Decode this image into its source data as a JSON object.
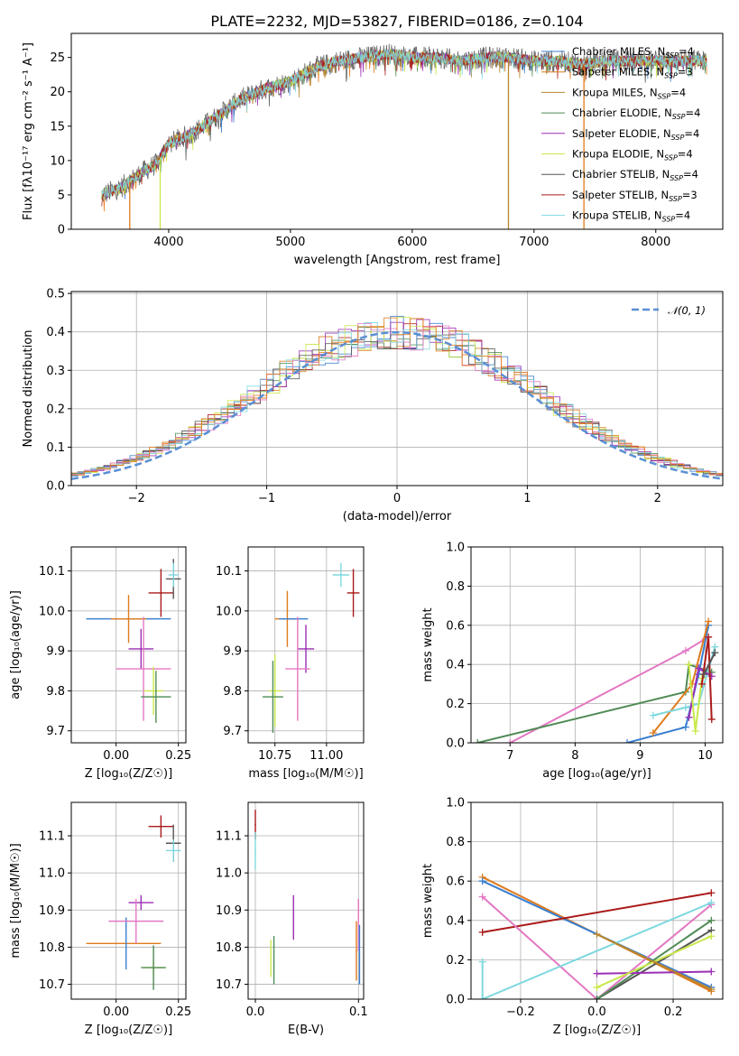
{
  "colors": [
    "#3a7fd0",
    "#e07b1d",
    "#b8862d",
    "#4f8b55",
    "#9b2fb5",
    "#c8e84a",
    "#555555",
    "#aa1a1a",
    "#7fd8df",
    "#e377c2"
  ],
  "chart_data": [
    {
      "id": "spectrum",
      "type": "line",
      "title": "PLATE=2232, MJD=53827, FIBERID=0186, z=0.104",
      "xlabel": "wavelength [Angstrom, rest frame]",
      "ylabel": "Flux [fλ10⁻¹⁷ erg cm⁻² s⁻¹ A⁻¹]",
      "xlim": [
        3200,
        8550
      ],
      "ylim": [
        0,
        28.5
      ],
      "xticks": [
        4000,
        5000,
        6000,
        7000,
        8000
      ],
      "yticks": [
        0,
        5,
        10,
        15,
        20,
        25
      ],
      "grid": false,
      "legend_position": "top-right",
      "continuum_x": [
        3450,
        3600,
        3800,
        3900,
        4000,
        4200,
        4400,
        4600,
        4800,
        5000,
        5200,
        5400,
        5600,
        5800,
        6000,
        6200,
        6400,
        6600,
        6800,
        7000,
        7200,
        7400,
        7600,
        7800,
        8000,
        8200,
        8400
      ],
      "continuum_y": [
        5,
        6,
        8.5,
        9.5,
        12.5,
        14,
        16.5,
        19,
        20.5,
        21.5,
        23.5,
        24.5,
        25,
        25.5,
        25,
        25,
        24.5,
        25,
        25,
        24.5,
        24.5,
        24,
        24.5,
        24.5,
        24.5,
        24.5,
        24.5
      ],
      "dips": [
        {
          "x": 3680,
          "series": 1
        },
        {
          "x": 3930,
          "series": 5
        },
        {
          "x": 6790,
          "series": 2
        },
        {
          "x": 7410,
          "series": 1
        }
      ],
      "legend": [
        {
          "label": "Chabrier MILES, N",
          "sub": "SSP",
          "suffix": "=4"
        },
        {
          "label": "Salpeter MILES, N",
          "sub": "SSP",
          "suffix": "=3"
        },
        {
          "label": "Kroupa MILES, N",
          "sub": "SSP",
          "suffix": "=4"
        },
        {
          "label": "Chabrier ELODIE, N",
          "sub": "SSP",
          "suffix": "=4"
        },
        {
          "label": "Salpeter ELODIE, N",
          "sub": "SSP",
          "suffix": "=4"
        },
        {
          "label": "Kroupa ELODIE, N",
          "sub": "SSP",
          "suffix": "=4"
        },
        {
          "label": "Chabrier STELIB, N",
          "sub": "SSP",
          "suffix": "=4"
        },
        {
          "label": "Salpeter STELIB, N",
          "sub": "SSP",
          "suffix": "=3"
        },
        {
          "label": "Kroupa STELIB, N",
          "sub": "SSP",
          "suffix": "=4"
        }
      ]
    },
    {
      "id": "residuals",
      "type": "histogram",
      "xlabel": "(data-model)/error",
      "ylabel": "Normed distribution",
      "xlim": [
        -2.5,
        2.5
      ],
      "ylim": [
        0,
        0.505
      ],
      "xticks": [
        -2,
        -1,
        0,
        1,
        2
      ],
      "yticks": [
        0.0,
        0.1,
        0.2,
        0.3,
        0.4,
        0.5
      ],
      "ytick_labels": [
        "0.0",
        "0.1",
        "0.2",
        "0.3",
        "0.4",
        "0.5"
      ],
      "xtick_labels": [
        "−2",
        "−1",
        "0",
        "1",
        "2"
      ],
      "grid": true,
      "bin_width": 0.1,
      "gaussian_label": "𝒩(0, 1)",
      "legend_position": "top-right"
    },
    {
      "id": "age-vs-Z",
      "type": "scatter",
      "xlabel": "Z [log₁₀(Z/Z☉)]",
      "ylabel": "age  [log₁₀(age/yr)]",
      "xlim": [
        -0.18,
        0.28
      ],
      "ylim": [
        9.67,
        10.16
      ],
      "xticks": [
        0.0,
        0.25
      ],
      "xtick_labels": [
        "0.00",
        "0.25"
      ],
      "yticks": [
        9.7,
        9.8,
        9.9,
        10.0,
        10.1
      ],
      "ytick_labels": [
        "9.7",
        "9.8",
        "9.9",
        "10.0",
        "10.1"
      ],
      "grid": true,
      "points": [
        {
          "x": 0.05,
          "y": 9.98,
          "dx": 0.17,
          "dy": 0.0,
          "c": 0
        },
        {
          "x": 0.05,
          "y": 9.98,
          "dx": 0.07,
          "dy": 0.06,
          "c": 1
        },
        {
          "x": 0.18,
          "y": 10.045,
          "dx": 0.05,
          "dy": 0.06,
          "c": 7
        },
        {
          "x": 0.23,
          "y": 10.08,
          "dx": 0.03,
          "dy": 0.05,
          "c": 6
        },
        {
          "x": 0.23,
          "y": 10.09,
          "dx": 0.02,
          "dy": 0.03,
          "c": 8
        },
        {
          "x": 0.1,
          "y": 9.905,
          "dx": 0.05,
          "dy": 0.05,
          "c": 4
        },
        {
          "x": 0.11,
          "y": 9.855,
          "dx": 0.11,
          "dy": 0.13,
          "c": 9
        },
        {
          "x": 0.15,
          "y": 9.8,
          "dx": 0.04,
          "dy": 0.06,
          "c": 5
        },
        {
          "x": 0.16,
          "y": 9.785,
          "dx": 0.06,
          "dy": 0.065,
          "c": 3
        }
      ]
    },
    {
      "id": "age-vs-mass",
      "type": "scatter",
      "xlabel": "mass [log₁₀(M/M☉)]",
      "ylabel": "",
      "xlim": [
        10.62,
        11.18
      ],
      "ylim": [
        9.67,
        10.16
      ],
      "xticks": [
        10.75,
        11.0
      ],
      "xtick_labels": [
        "10.75",
        "11.00"
      ],
      "yticks": [
        9.7,
        9.8,
        9.9,
        10.0,
        10.1
      ],
      "ytick_labels": [
        "9.7",
        "9.8",
        "9.9",
        "10.0",
        "10.1"
      ],
      "grid": true,
      "points": [
        {
          "x": 10.81,
          "y": 9.98,
          "dx": 0.06,
          "dy": 0.07,
          "c": 1
        },
        {
          "x": 10.84,
          "y": 9.98,
          "dx": 0.07,
          "dy": 0.0,
          "c": 0
        },
        {
          "x": 11.13,
          "y": 10.045,
          "dx": 0.03,
          "dy": 0.06,
          "c": 7
        },
        {
          "x": 11.07,
          "y": 10.09,
          "dx": 0.04,
          "dy": 0.03,
          "c": 8
        },
        {
          "x": 10.9,
          "y": 9.905,
          "dx": 0.04,
          "dy": 0.06,
          "c": 4
        },
        {
          "x": 10.86,
          "y": 9.855,
          "dx": 0.06,
          "dy": 0.13,
          "c": 9
        },
        {
          "x": 10.75,
          "y": 9.8,
          "dx": 0.03,
          "dy": 0.09,
          "c": 5
        },
        {
          "x": 10.74,
          "y": 9.785,
          "dx": 0.05,
          "dy": 0.09,
          "c": 3
        }
      ]
    },
    {
      "id": "weight-vs-age",
      "type": "line",
      "xlabel": "age  [log₁₀(age/yr)]",
      "ylabel": "mass weight",
      "xlim": [
        6.4,
        10.27
      ],
      "ylim": [
        0,
        1.0
      ],
      "xticks": [
        7,
        8,
        9,
        10
      ],
      "xtick_labels": [
        "7",
        "8",
        "9",
        "10"
      ],
      "yticks": [
        0.0,
        0.2,
        0.4,
        0.6,
        0.8,
        1.0
      ],
      "ytick_labels": [
        "0.0",
        "0.2",
        "0.4",
        "0.6",
        "0.8",
        "1.0"
      ],
      "grid": true,
      "series": [
        {
          "c": 9,
          "x": [
            7.0,
            9.7,
            10.0
          ],
          "y": [
            0.0,
            0.47,
            0.53
          ]
        },
        {
          "c": 3,
          "x": [
            6.5,
            9.7,
            9.75,
            10.1
          ],
          "y": [
            0.0,
            0.26,
            0.4,
            0.36
          ]
        },
        {
          "c": 0,
          "x": [
            8.8,
            9.7,
            9.9,
            10.05
          ],
          "y": [
            0.0,
            0.08,
            0.35,
            0.6
          ]
        },
        {
          "c": 1,
          "x": [
            9.2,
            9.8,
            10.05
          ],
          "y": [
            0.05,
            0.3,
            0.62
          ]
        },
        {
          "c": 8,
          "x": [
            9.2,
            9.7,
            9.9,
            10.15
          ],
          "y": [
            0.14,
            0.18,
            0.2,
            0.49
          ]
        },
        {
          "c": 4,
          "x": [
            9.75,
            9.9,
            10.1
          ],
          "y": [
            0.13,
            0.38,
            0.34
          ]
        },
        {
          "c": 5,
          "x": [
            9.75,
            9.85,
            9.95
          ],
          "y": [
            0.4,
            0.06,
            0.33
          ]
        },
        {
          "c": 7,
          "x": [
            9.95,
            10.05,
            10.1
          ],
          "y": [
            0.3,
            0.54,
            0.12
          ]
        },
        {
          "c": 6,
          "x": [
            9.98,
            10.15
          ],
          "y": [
            0.35,
            0.46
          ]
        }
      ]
    },
    {
      "id": "mass-vs-Z",
      "type": "scatter",
      "xlabel": "Z [log₁₀(Z/Z☉)]",
      "ylabel": "mass [log₁₀(M/M☉)]",
      "xlim": [
        -0.18,
        0.28
      ],
      "ylim": [
        10.66,
        11.19
      ],
      "xticks": [
        0.0,
        0.25
      ],
      "xtick_labels": [
        "0.00",
        "0.25"
      ],
      "yticks": [
        10.7,
        10.8,
        10.9,
        11.0,
        11.1
      ],
      "ytick_labels": [
        "10.7",
        "10.8",
        "10.9",
        "11.0",
        "11.1"
      ],
      "grid": true,
      "points": [
        {
          "x": 0.03,
          "y": 10.81,
          "dx": 0.15,
          "dy": 0.0,
          "c": 1
        },
        {
          "x": 0.04,
          "y": 10.81,
          "dx": 0.0,
          "dy": 0.07,
          "c": 0
        },
        {
          "x": 0.18,
          "y": 11.125,
          "dx": 0.05,
          "dy": 0.03,
          "c": 7
        },
        {
          "x": 0.23,
          "y": 11.08,
          "dx": 0.03,
          "dy": 0.05,
          "c": 6
        },
        {
          "x": 0.23,
          "y": 11.06,
          "dx": 0.03,
          "dy": 0.03,
          "c": 8
        },
        {
          "x": 0.1,
          "y": 10.92,
          "dx": 0.05,
          "dy": 0.02,
          "c": 4
        },
        {
          "x": 0.08,
          "y": 10.87,
          "dx": 0.11,
          "dy": 0.06,
          "c": 9
        },
        {
          "x": 0.15,
          "y": 10.745,
          "dx": 0.04,
          "dy": 0.02,
          "c": 5
        },
        {
          "x": 0.15,
          "y": 10.745,
          "dx": 0.05,
          "dy": 0.06,
          "c": 3
        }
      ]
    },
    {
      "id": "mass-vs-ebv",
      "type": "scatter",
      "xlabel": "E(B-V)",
      "ylabel": "",
      "xlim": [
        -0.007,
        0.105
      ],
      "ylim": [
        10.66,
        11.19
      ],
      "xticks": [
        0.0,
        0.1
      ],
      "xtick_labels": [
        "0.0",
        "0.1"
      ],
      "yticks": [
        10.7,
        10.8,
        10.9,
        11.0,
        11.1
      ],
      "ytick_labels": [
        "10.7",
        "10.8",
        "10.9",
        "11.0",
        "11.1"
      ],
      "grid": true,
      "points": [
        {
          "x": 0.0,
          "y": 11.13,
          "dx": 0,
          "dy": 0.04,
          "c": 7
        },
        {
          "x": 0.0,
          "y": 11.06,
          "dx": 0,
          "dy": 0.05,
          "c": 8
        },
        {
          "x": 0.015,
          "y": 10.77,
          "dx": 0,
          "dy": 0.05,
          "c": 5
        },
        {
          "x": 0.018,
          "y": 10.765,
          "dx": 0,
          "dy": 0.065,
          "c": 3
        },
        {
          "x": 0.037,
          "y": 10.88,
          "dx": 0,
          "dy": 0.06,
          "c": 4
        },
        {
          "x": 0.098,
          "y": 10.79,
          "dx": 0,
          "dy": 0.08,
          "c": 1
        },
        {
          "x": 0.1,
          "y": 10.86,
          "dx": 0,
          "dy": 0.07,
          "c": 9
        },
        {
          "x": 0.101,
          "y": 10.78,
          "dx": 0,
          "dy": 0.08,
          "c": 0
        }
      ]
    },
    {
      "id": "weight-vs-Z",
      "type": "line",
      "xlabel": "Z [log₁₀(Z/Z☉)]",
      "ylabel": "mass weight",
      "xlim": [
        -0.33,
        0.33
      ],
      "ylim": [
        0,
        1.0
      ],
      "xticks": [
        -0.2,
        0.0,
        0.2
      ],
      "xtick_labels": [
        "−0.2",
        "0.0",
        "0.2"
      ],
      "yticks": [
        0.0,
        0.2,
        0.4,
        0.6,
        0.8,
        1.0
      ],
      "ytick_labels": [
        "0.0",
        "0.2",
        "0.4",
        "0.6",
        "0.8",
        "1.0"
      ],
      "grid": true,
      "series": [
        {
          "c": 1,
          "x": [
            -0.3,
            0.3
          ],
          "y": [
            0.62,
            0.04
          ]
        },
        {
          "c": 0,
          "x": [
            -0.3,
            0.3
          ],
          "y": [
            0.6,
            0.06
          ]
        },
        {
          "c": 7,
          "x": [
            -0.3,
            0.3
          ],
          "y": [
            0.34,
            0.54
          ]
        },
        {
          "c": 9,
          "x": [
            -0.3,
            0.0,
            0.3
          ],
          "y": [
            0.52,
            0.0,
            0.48
          ]
        },
        {
          "c": 8,
          "x": [
            -0.3,
            -0.3,
            0.3
          ],
          "y": [
            0.19,
            0.0,
            0.49
          ]
        },
        {
          "c": 6,
          "x": [
            0.0,
            0.3
          ],
          "y": [
            0.0,
            0.35
          ]
        },
        {
          "c": 3,
          "x": [
            0.0,
            0.3
          ],
          "y": [
            0.0,
            0.4
          ]
        },
        {
          "c": 4,
          "x": [
            0.0,
            0.3
          ],
          "y": [
            0.13,
            0.14
          ]
        },
        {
          "c": 5,
          "x": [
            0.0,
            0.3
          ],
          "y": [
            0.06,
            0.32
          ]
        },
        {
          "c": 2,
          "x": [
            0.0,
            0.3
          ],
          "y": [
            0.33,
            0.05
          ]
        }
      ]
    }
  ]
}
